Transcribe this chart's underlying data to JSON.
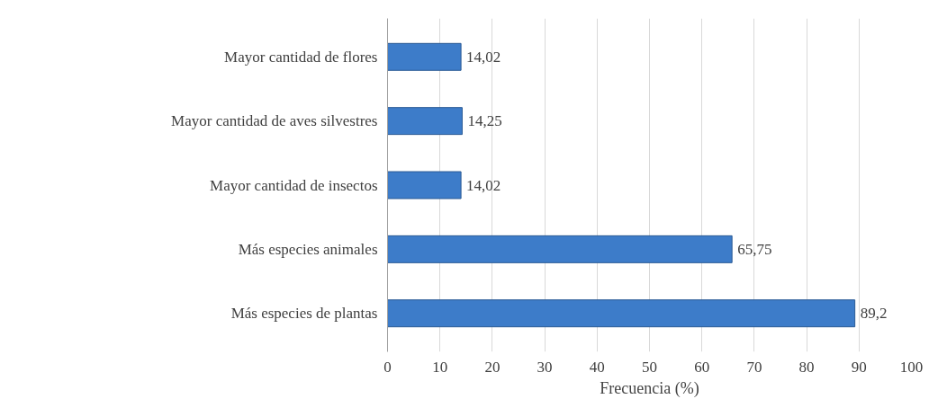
{
  "chart_data": {
    "type": "bar",
    "orientation": "horizontal",
    "xlabel": "Frecuencia (%)",
    "categories": [
      "Mayor cantidad de flores",
      "Mayor cantidad de aves silvestres",
      "Mayor cantidad de insectos",
      "Más especies animales",
      "Más especies de plantas"
    ],
    "values": [
      14.02,
      14.25,
      14.02,
      65.75,
      89.2
    ],
    "value_labels": [
      "14,02",
      "14,25",
      "14,02",
      "65,75",
      "89,2"
    ],
    "color": "#3d7cc9",
    "xlim": [
      0,
      100
    ],
    "xticks": [
      0,
      10,
      20,
      30,
      40,
      50,
      60,
      70,
      80,
      90,
      100
    ],
    "grid": "x"
  }
}
